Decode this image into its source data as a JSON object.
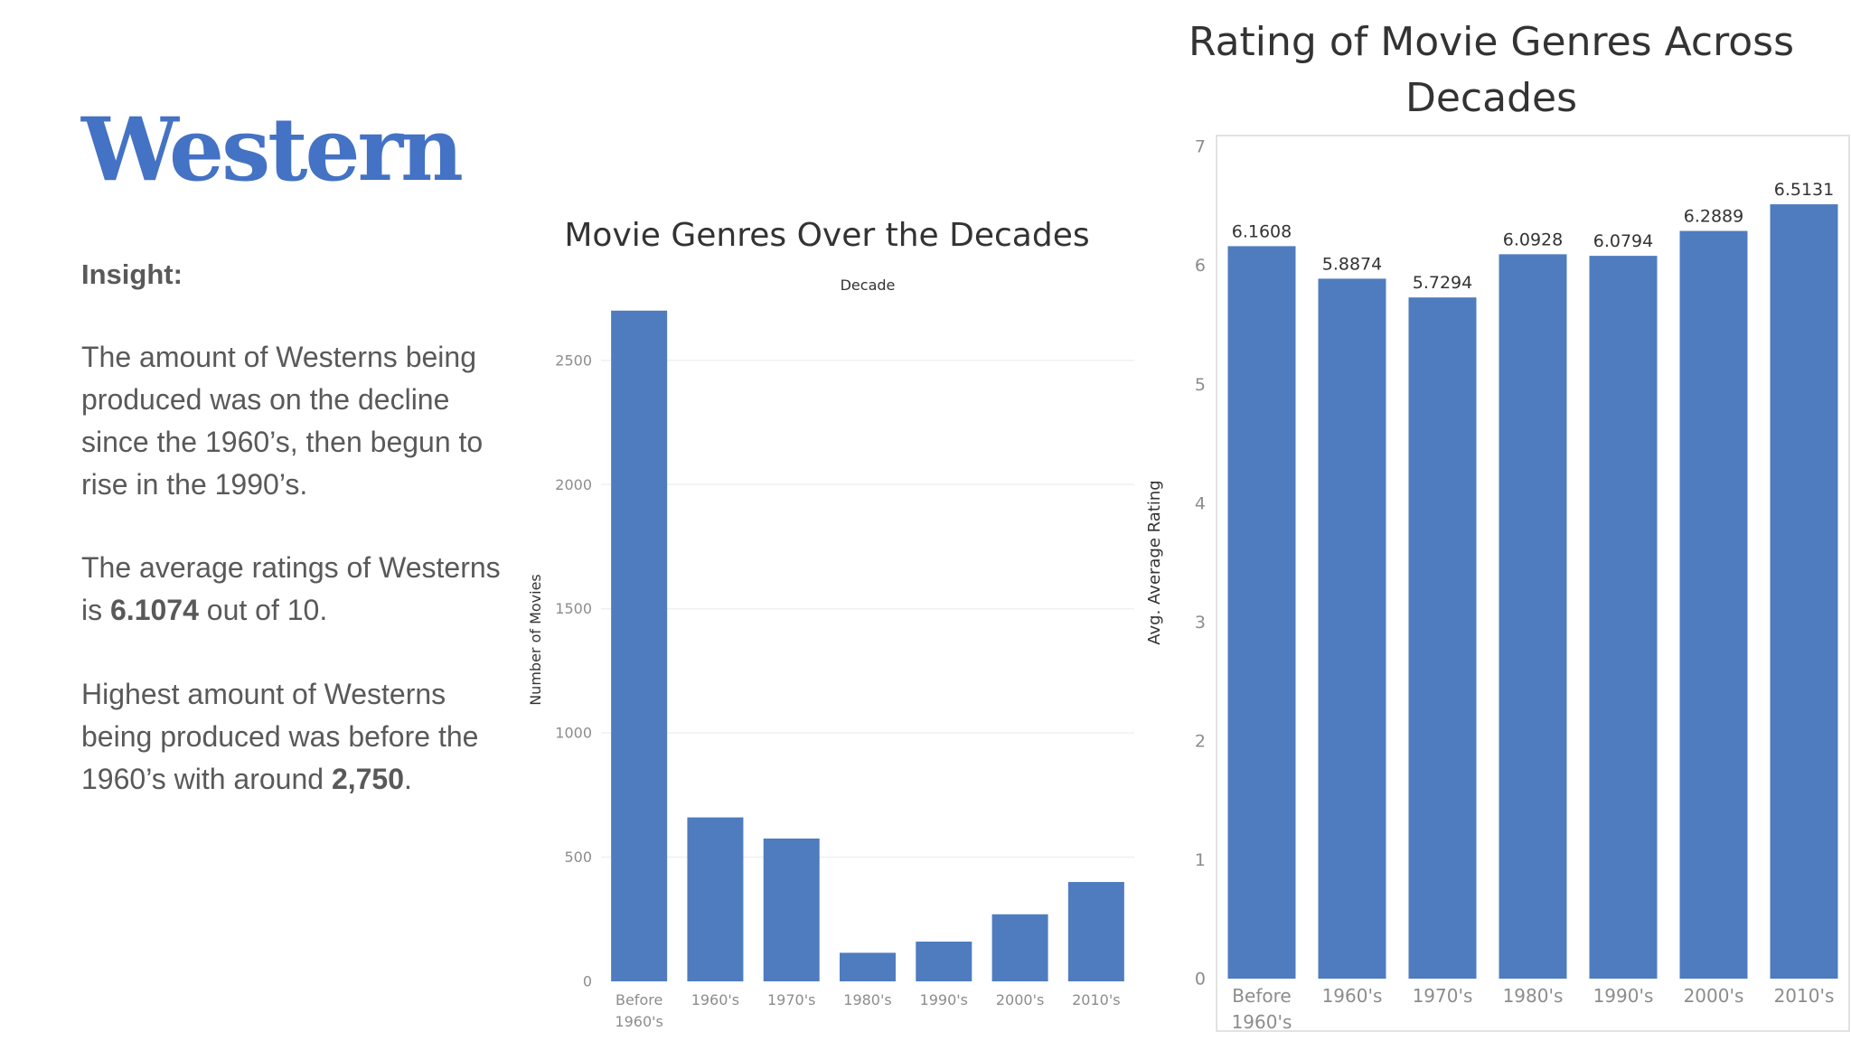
{
  "page": {
    "genre": "Western",
    "insight_heading": "Insight:",
    "paragraphs": [
      {
        "pre": "The amount of Westerns being produced was on the decline since the 1960’s, then begun to rise in the 1990’s.",
        "bold": "",
        "post": ""
      },
      {
        "pre": "The average ratings of Westerns is ",
        "bold": "6.1074",
        "post": " out of 10."
      },
      {
        "pre": "Highest amount of Westerns being produced was before the 1960’s with around ",
        "bold": "2,750",
        "post": "."
      }
    ]
  },
  "colors": {
    "bar": "#4f7cbf",
    "title": "#333333",
    "text": "#595959"
  },
  "chart_data": [
    {
      "type": "bar",
      "title": "Movie Genres Over the Decades",
      "xlabel": "Decade",
      "ylabel": "Number of Movies",
      "categories": [
        "Before 1960's",
        "1960's",
        "1970's",
        "1980's",
        "1990's",
        "2000's",
        "2010's"
      ],
      "category_lines": [
        [
          "Before",
          "1960's"
        ],
        [
          "1960's"
        ],
        [
          "1970's"
        ],
        [
          "1980's"
        ],
        [
          "1990's"
        ],
        [
          "2000's"
        ],
        [
          "2010's"
        ]
      ],
      "values": [
        2700,
        660,
        575,
        115,
        160,
        270,
        400
      ],
      "ylim": [
        0,
        2750
      ],
      "yticks": [
        0,
        500,
        1000,
        1500,
        2000,
        2500
      ],
      "grid": true
    },
    {
      "type": "bar",
      "title": "Rating of Movie Genres Across Decades",
      "xlabel": "",
      "ylabel": "Avg. Average Rating",
      "categories": [
        "Before 1960's",
        "1960's",
        "1970's",
        "1980's",
        "1990's",
        "2000's",
        "2010's"
      ],
      "category_lines": [
        [
          "Before",
          "1960's"
        ],
        [
          "1960's"
        ],
        [
          "1970's"
        ],
        [
          "1980's"
        ],
        [
          "1990's"
        ],
        [
          "2000's"
        ],
        [
          "2010's"
        ]
      ],
      "values": [
        6.1608,
        5.8874,
        5.7294,
        6.0928,
        6.0794,
        6.2889,
        6.5131
      ],
      "data_labels": [
        "6.1608",
        "5.8874",
        "5.7294",
        "6.0928",
        "6.0794",
        "6.2889",
        "6.5131"
      ],
      "ylim": [
        0,
        7
      ],
      "yticks": [
        0,
        1,
        2,
        3,
        4,
        5,
        6,
        7
      ],
      "grid": false
    }
  ]
}
